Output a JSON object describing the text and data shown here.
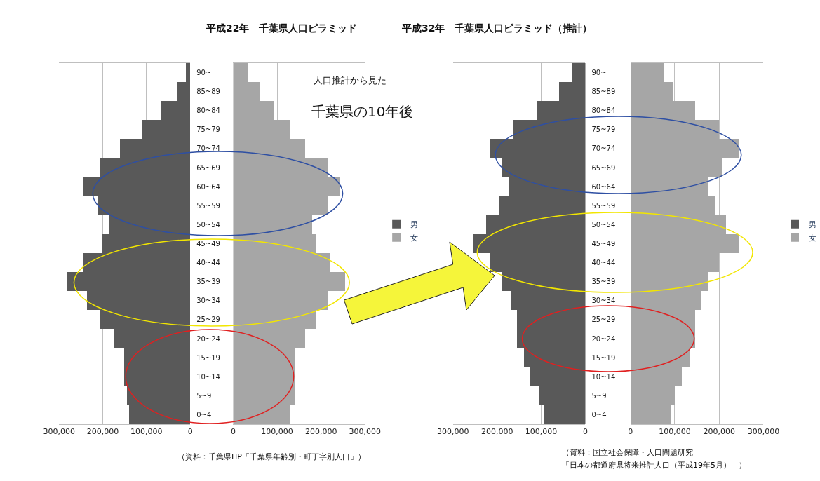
{
  "chart_data": [
    {
      "type": "bar",
      "orientation": "horizontal",
      "categories": [
        "90~",
        "85~89",
        "80~84",
        "75~79",
        "70~74",
        "65~69",
        "60~64",
        "55~59",
        "50~54",
        "45~49",
        "40~44",
        "35~39",
        "30~34",
        "25~29",
        "20~24",
        "15~19",
        "10~14",
        "5~9",
        "0~4"
      ],
      "series": [
        {
          "name": "男",
          "color": "#595959",
          "values": [
            10000,
            30000,
            65000,
            110000,
            160000,
            205000,
            245000,
            210000,
            185000,
            200000,
            245000,
            280000,
            235000,
            205000,
            175000,
            150000,
            150000,
            145000,
            140000
          ]
        }
      ],
      "xlim": [
        300000,
        0
      ],
      "xticks": [
        {
          "value": 300000,
          "label": "300,000"
        },
        {
          "value": 200000,
          "label": "200,000"
        },
        {
          "value": 100000,
          "label": "100,000"
        },
        0
      ],
      "grid": "x",
      "legend": "right"
    },
    {
      "type": "bar",
      "orientation": "horizontal",
      "categories": [
        null,
        null,
        null,
        null,
        null,
        null,
        null,
        null,
        null,
        null,
        null,
        null,
        null,
        null,
        null,
        null,
        null,
        null,
        null
      ],
      "title": "平成22年　千葉県人口ピラミッド",
      "series": [
        {
          "name": "女",
          "color": "#a6a6a6",
          "values": [
            35000,
            60000,
            95000,
            130000,
            165000,
            215000,
            245000,
            215000,
            180000,
            190000,
            220000,
            255000,
            215000,
            190000,
            165000,
            140000,
            140000,
            140000,
            130000
          ]
        }
      ],
      "xlim": [
        0,
        300000
      ],
      "xticks": [
        0,
        {
          "value": 100000,
          "label": "100,000"
        },
        {
          "value": 200000,
          "label": "200,000"
        },
        {
          "value": 300000,
          "label": "300,000"
        }
      ],
      "grid": "x",
      "legend": "right",
      "tick_labels": "x",
      "annotations": [
        "人口推計から見た",
        "千葉県の10年後",
        "（資料：千葉県HP「千葉県年齢別・町丁字別人口」）"
      ]
    },
    {
      "type": "bar",
      "orientation": "horizontal",
      "title": "平成32年　千葉県人口ピラミッド（推計）",
      "categories": [
        "90~",
        "85~89",
        "80~84",
        "75~79",
        "70~74",
        "65~69",
        "60~64",
        "55~59",
        "50~54",
        "45~49",
        "40~44",
        "35~39",
        "30~34",
        "25~29",
        "20~24",
        "15~19",
        "10~14",
        "5~9",
        "0~4"
      ],
      "series": [
        {
          "name": "男",
          "color": "#595959",
          "values": [
            30000,
            60000,
            110000,
            165000,
            215000,
            190000,
            175000,
            195000,
            225000,
            255000,
            215000,
            190000,
            170000,
            155000,
            155000,
            140000,
            125000,
            105000,
            95000
          ]
        }
      ],
      "xlim": [
        300000,
        0
      ],
      "xticks": [
        {
          "value": 300000,
          "label": "300,000"
        },
        {
          "value": 200000,
          "label": "200,000"
        },
        {
          "value": 100000,
          "label": "100,000"
        },
        0
      ],
      "grid": "x",
      "legend": "right"
    },
    {
      "type": "bar",
      "orientation": "horizontal",
      "categories": [
        null,
        null,
        null,
        null,
        null,
        null,
        null,
        null,
        null,
        null,
        null,
        null,
        null,
        null,
        null,
        null,
        null,
        null,
        null
      ],
      "series": [
        {
          "name": "女",
          "color": "#a6a6a6",
          "values": [
            75000,
            95000,
            145000,
            200000,
            245000,
            205000,
            175000,
            190000,
            215000,
            245000,
            200000,
            175000,
            160000,
            145000,
            145000,
            135000,
            115000,
            100000,
            90000
          ]
        }
      ],
      "xlim": [
        0,
        300000
      ],
      "xticks": [
        0,
        {
          "value": 100000,
          "label": "100,000"
        },
        {
          "value": 200000,
          "label": "200,000"
        },
        {
          "value": 300000,
          "label": "300,000"
        }
      ],
      "grid": "x",
      "legend": "right",
      "tick_labels": "x",
      "annotations": [
        "（資料：国立社会保障・人口問題研究",
        "「日本の都道府県将来推計人口（平成19年5月）」）"
      ]
    }
  ]
}
